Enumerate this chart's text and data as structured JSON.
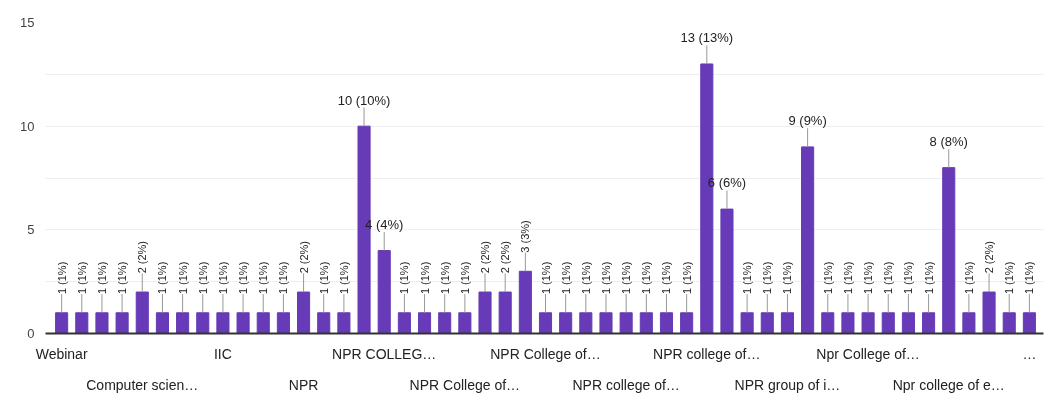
{
  "chart_data": {
    "type": "bar",
    "categories": [
      "Webinar",
      null,
      null,
      null,
      "Computer scien…",
      null,
      null,
      null,
      "IIC",
      null,
      null,
      null,
      "NPR",
      null,
      null,
      null,
      "NPR COLLEG…",
      null,
      null,
      null,
      "NPR College of…",
      null,
      null,
      null,
      "NPR College of…",
      null,
      null,
      null,
      "NPR college of…",
      null,
      null,
      null,
      "NPR college of…",
      null,
      null,
      null,
      "NPR group of i…",
      null,
      null,
      null,
      "Npr College of…",
      null,
      null,
      null,
      "Npr college of e…",
      null,
      null,
      null,
      "…"
    ],
    "values": [
      1,
      1,
      1,
      1,
      2,
      1,
      1,
      1,
      1,
      1,
      1,
      1,
      2,
      1,
      1,
      10,
      4,
      1,
      1,
      1,
      1,
      2,
      2,
      3,
      1,
      1,
      1,
      1,
      1,
      1,
      1,
      1,
      13,
      6,
      1,
      1,
      1,
      9,
      1,
      1,
      1,
      1,
      1,
      1,
      8,
      1,
      2,
      1,
      1
    ],
    "value_labels": [
      "1 (1%)",
      "1 (1%)",
      "1 (1%)",
      "1 (1%)",
      "2 (2%)",
      "1 (1%)",
      "1 (1%)",
      "1 (1%)",
      "1 (1%)",
      "1 (1%)",
      "1 (1%)",
      "1 (1%)",
      "2 (2%)",
      "1 (1%)",
      "1 (1%)",
      "10 (10%)",
      "4 (4%)",
      "1 (1%)",
      "1 (1%)",
      "1 (1%)",
      "1 (1%)",
      "2 (2%)",
      "2 (2%)",
      "3 (3%)",
      "1 (1%)",
      "1 (1%)",
      "1 (1%)",
      "1 (1%)",
      "1 (1%)",
      "1 (1%)",
      "1 (1%)",
      "1 (1%)",
      "13 (13%)",
      "6 (6%)",
      "1 (1%)",
      "1 (1%)",
      "1 (1%)",
      "9 (9%)",
      "1 (1%)",
      "1 (1%)",
      "1 (1%)",
      "1 (1%)",
      "1 (1%)",
      "1 (1%)",
      "8 (8%)",
      "1 (1%)",
      "2 (2%)",
      "1 (1%)",
      "1 (1%)"
    ],
    "color": "#673ab7",
    "ylim": [
      0,
      15
    ],
    "yticks": [
      0,
      {
        "value": 2.5,
        "label": null
      },
      5,
      {
        "value": 7.5,
        "label": null
      },
      10,
      {
        "value": 12.5,
        "label": null
      },
      15
    ],
    "grid": "y"
  }
}
